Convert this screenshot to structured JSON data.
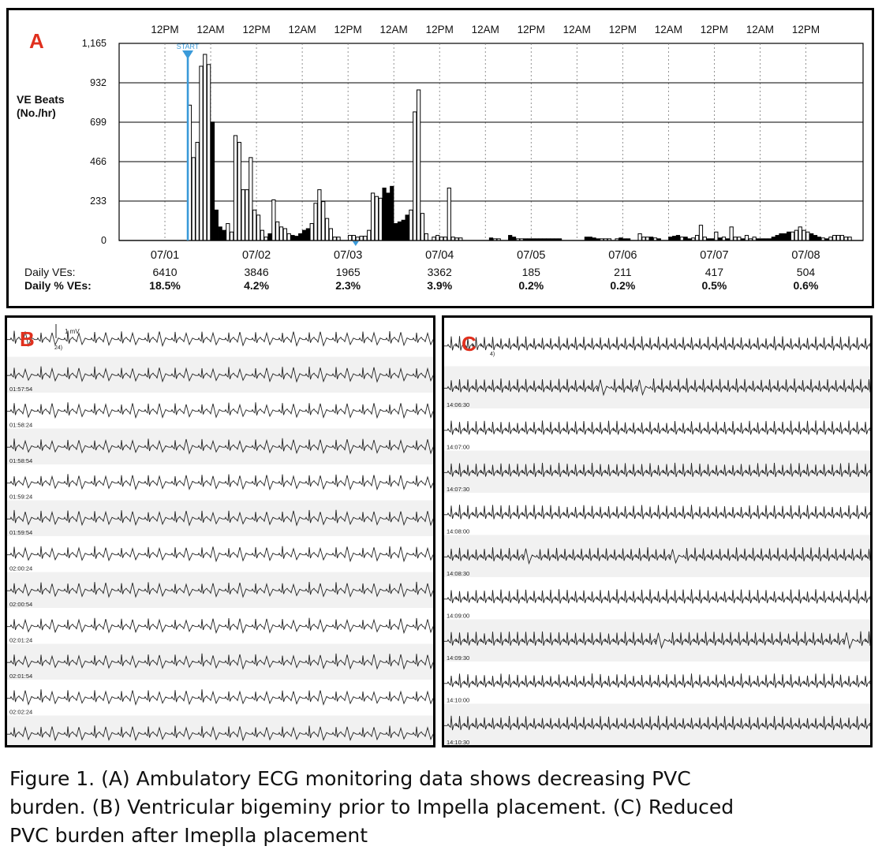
{
  "chart_data": {
    "type": "bar",
    "panel_label": "A",
    "ylabel": "VE Beats (No./hr)",
    "ylabel_lines": [
      "VE Beats",
      "(No./hr)"
    ],
    "ylim": [
      0,
      1165
    ],
    "yticks": [
      0,
      233,
      466,
      699,
      932,
      1165
    ],
    "ytick_labels": [
      "0",
      "233",
      "466",
      "699",
      "932",
      "1,165"
    ],
    "top_time_labels": [
      "12PM",
      "12AM",
      "12PM",
      "12AM",
      "12PM",
      "12AM",
      "12PM",
      "12AM",
      "12PM",
      "12AM",
      "12PM",
      "12AM",
      "12PM",
      "12AM",
      "12PM"
    ],
    "days": [
      "07/01",
      "07/02",
      "07/03",
      "07/04",
      "07/05",
      "07/06",
      "07/07",
      "07/08"
    ],
    "start_marker": {
      "label": "START",
      "hour": 18
    },
    "secondary_marker_hour": 62,
    "summary_row_labels": [
      "Daily VEs:",
      "Daily % VEs:"
    ],
    "daily_ves": [
      "6410",
      "3846",
      "1965",
      "3362",
      "185",
      "211",
      "417",
      "504"
    ],
    "daily_pct_ves": [
      "18.5%",
      "4.2%",
      "2.3%",
      "3.9%",
      "0.2%",
      "0.2%",
      "0.5%",
      "0.6%"
    ],
    "series": [
      {
        "name": "hourly VE beats (open)",
        "style": "open",
        "points": [
          [
            18,
            800
          ],
          [
            19,
            490
          ],
          [
            20,
            580
          ],
          [
            21,
            1030
          ],
          [
            22,
            1100
          ],
          [
            23,
            1040
          ],
          [
            28,
            100
          ],
          [
            29,
            50
          ],
          [
            30,
            620
          ],
          [
            31,
            580
          ],
          [
            32,
            300
          ],
          [
            33,
            300
          ],
          [
            34,
            490
          ],
          [
            35,
            180
          ],
          [
            36,
            150
          ],
          [
            37,
            60
          ],
          [
            38,
            20
          ],
          [
            40,
            240
          ],
          [
            41,
            110
          ],
          [
            42,
            80
          ],
          [
            43,
            70
          ],
          [
            44,
            40
          ],
          [
            50,
            100
          ],
          [
            51,
            220
          ],
          [
            52,
            300
          ],
          [
            53,
            230
          ],
          [
            54,
            130
          ],
          [
            55,
            70
          ],
          [
            56,
            20
          ],
          [
            57,
            20
          ],
          [
            60,
            30
          ],
          [
            61,
            30
          ],
          [
            62,
            20
          ],
          [
            63,
            25
          ],
          [
            64,
            25
          ],
          [
            65,
            60
          ],
          [
            66,
            280
          ],
          [
            67,
            260
          ],
          [
            68,
            250
          ],
          [
            76,
            180
          ],
          [
            77,
            760
          ],
          [
            78,
            890
          ],
          [
            79,
            160
          ],
          [
            80,
            40
          ],
          [
            82,
            20
          ],
          [
            83,
            30
          ],
          [
            84,
            20
          ],
          [
            85,
            20
          ],
          [
            86,
            310
          ],
          [
            87,
            20
          ],
          [
            88,
            15
          ],
          [
            89,
            15
          ],
          [
            98,
            10
          ],
          [
            99,
            10
          ],
          [
            104,
            10
          ],
          [
            105,
            10
          ],
          [
            126,
            10
          ],
          [
            127,
            10
          ],
          [
            128,
            10
          ],
          [
            130,
            10
          ],
          [
            136,
            40
          ],
          [
            137,
            20
          ],
          [
            138,
            20
          ],
          [
            140,
            15
          ],
          [
            147,
            20
          ],
          [
            150,
            15
          ],
          [
            151,
            30
          ],
          [
            152,
            90
          ],
          [
            153,
            20
          ],
          [
            156,
            50
          ],
          [
            158,
            20
          ],
          [
            160,
            80
          ],
          [
            161,
            20
          ],
          [
            162,
            20
          ],
          [
            164,
            30
          ],
          [
            165,
            10
          ],
          [
            166,
            20
          ],
          [
            176,
            50
          ],
          [
            177,
            60
          ],
          [
            178,
            80
          ],
          [
            179,
            60
          ],
          [
            180,
            50
          ],
          [
            184,
            15
          ],
          [
            186,
            20
          ],
          [
            187,
            30
          ],
          [
            188,
            30
          ],
          [
            189,
            30
          ],
          [
            190,
            20
          ],
          [
            191,
            20
          ]
        ]
      },
      {
        "name": "hourly VE beats (filled)",
        "style": "filled",
        "points": [
          [
            24,
            700
          ],
          [
            25,
            180
          ],
          [
            26,
            80
          ],
          [
            27,
            60
          ],
          [
            39,
            40
          ],
          [
            45,
            30
          ],
          [
            46,
            25
          ],
          [
            47,
            40
          ],
          [
            48,
            60
          ],
          [
            49,
            70
          ],
          [
            69,
            310
          ],
          [
            70,
            280
          ],
          [
            71,
            320
          ],
          [
            72,
            100
          ],
          [
            73,
            110
          ],
          [
            74,
            120
          ],
          [
            75,
            150
          ],
          [
            97,
            15
          ],
          [
            102,
            30
          ],
          [
            103,
            20
          ],
          [
            106,
            10
          ],
          [
            107,
            10
          ],
          [
            108,
            10
          ],
          [
            109,
            10
          ],
          [
            110,
            10
          ],
          [
            111,
            10
          ],
          [
            112,
            10
          ],
          [
            113,
            10
          ],
          [
            114,
            10
          ],
          [
            115,
            10
          ],
          [
            122,
            20
          ],
          [
            123,
            20
          ],
          [
            124,
            15
          ],
          [
            125,
            10
          ],
          [
            131,
            15
          ],
          [
            132,
            10
          ],
          [
            133,
            10
          ],
          [
            139,
            20
          ],
          [
            141,
            10
          ],
          [
            144,
            20
          ],
          [
            145,
            25
          ],
          [
            146,
            30
          ],
          [
            148,
            20
          ],
          [
            149,
            10
          ],
          [
            154,
            10
          ],
          [
            155,
            10
          ],
          [
            157,
            15
          ],
          [
            159,
            10
          ],
          [
            163,
            10
          ],
          [
            167,
            10
          ],
          [
            168,
            10
          ],
          [
            169,
            10
          ],
          [
            170,
            10
          ],
          [
            171,
            20
          ],
          [
            172,
            30
          ],
          [
            173,
            40
          ],
          [
            174,
            40
          ],
          [
            175,
            50
          ],
          [
            181,
            40
          ],
          [
            182,
            30
          ],
          [
            183,
            20
          ],
          [
            185,
            10
          ]
        ]
      }
    ]
  },
  "panel_b": {
    "label": "B",
    "scale_label": "1 mV",
    "lead_label": "24)",
    "row_timestamps": [
      "01:57:54",
      "01:58:24",
      "01:58:54",
      "01:59:24",
      "01:59:54",
      "02:00:24",
      "02:00:54",
      "02:01:24",
      "02:01:54",
      "02:02:24",
      "02:02:54 (6/5/2024)"
    ]
  },
  "panel_c": {
    "label": "C",
    "lead_label": "4)",
    "row_timestamps": [
      "14:06:30",
      "14:07:00",
      "14:07:30",
      "14:08:00",
      "14:08:30",
      "14:09:00",
      "14:09:30",
      "14:10:00",
      "14:10:30"
    ]
  },
  "caption": {
    "line1": "Figure 1. (A) Ambulatory ECG monitoring data shows decreasing PVC",
    "line2": "burden. (B) Ventricular bigeminy prior to Impella placement. (C) Reduced",
    "line3": "PVC burden after Imeplla placement"
  },
  "colors": {
    "panel_letter": "#e0301e",
    "start_marker": "#3a9ad9",
    "bar_fill": "#000000",
    "bar_open": "#ffffff",
    "ecg_trace": "#222222"
  }
}
